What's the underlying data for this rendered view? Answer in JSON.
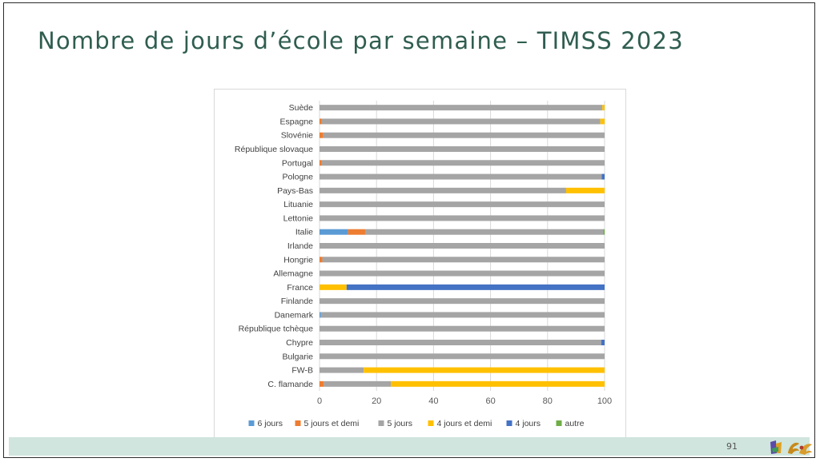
{
  "slide": {
    "title": "Nombre de jours d’école par semaine – TIMSS 2023",
    "page_number": "91",
    "logo_icon": "federation-logo-icon"
  },
  "colors": {
    "title": "#2f5d50",
    "footer_band": "#cfe5dd"
  },
  "chart_data": {
    "type": "bar",
    "orientation": "horizontal",
    "stacked": true,
    "categories": [
      "Suède",
      "Espagne",
      "Slovénie",
      "République slovaque",
      "Portugal",
      "Pologne",
      "Pays-Bas",
      "Lituanie",
      "Lettonie",
      "Italie",
      "Irlande",
      "Hongrie",
      "Allemagne",
      "France",
      "Finlande",
      "Danemark",
      "République tchèque",
      "Chypre",
      "Bulgarie",
      "FW-B",
      "C. flamande"
    ],
    "series": [
      {
        "name": "6 jours",
        "color": "#5b9bd5",
        "values": [
          0,
          0,
          0,
          0,
          0,
          0,
          0,
          0,
          0,
          10,
          0,
          0,
          0,
          0,
          0,
          0.5,
          0,
          0,
          0,
          0,
          0
        ]
      },
      {
        "name": "5 jours et demi",
        "color": "#ed7d31",
        "values": [
          0,
          0.7,
          1.3,
          0,
          0.7,
          0,
          0,
          0,
          0,
          6,
          0,
          1,
          0,
          0,
          0,
          0,
          0,
          0,
          0,
          0,
          1.5
        ]
      },
      {
        "name": "5 jours",
        "color": "#a5a5a5",
        "values": [
          99.2,
          97.8,
          98.7,
          100,
          99.3,
          99,
          86.5,
          100,
          100,
          83.5,
          100,
          99,
          100,
          0,
          100,
          99.5,
          100,
          98.8,
          100,
          15.5,
          23.5
        ]
      },
      {
        "name": "4 jours et demi",
        "color": "#ffc000",
        "values": [
          0.8,
          1.5,
          0,
          0,
          0,
          0,
          13.5,
          0,
          0,
          0,
          0,
          0,
          0,
          9.5,
          0,
          0,
          0,
          0,
          0,
          84.5,
          75
        ]
      },
      {
        "name": "4 jours",
        "color": "#4472c4",
        "values": [
          0,
          0,
          0,
          0,
          0,
          1,
          0,
          0,
          0,
          0,
          0,
          0,
          0,
          90.5,
          0,
          0,
          0,
          1.2,
          0,
          0,
          0
        ]
      },
      {
        "name": "autre",
        "color": "#70ad47",
        "values": [
          0,
          0,
          0,
          0,
          0,
          0,
          0,
          0,
          0,
          0.5,
          0,
          0,
          0,
          0,
          0,
          0,
          0,
          0,
          0,
          0,
          0
        ]
      }
    ],
    "x_ticks": [
      0,
      20,
      40,
      60,
      80,
      100
    ],
    "xlim": [
      0,
      100
    ],
    "grid": true,
    "legend_position": "bottom"
  }
}
